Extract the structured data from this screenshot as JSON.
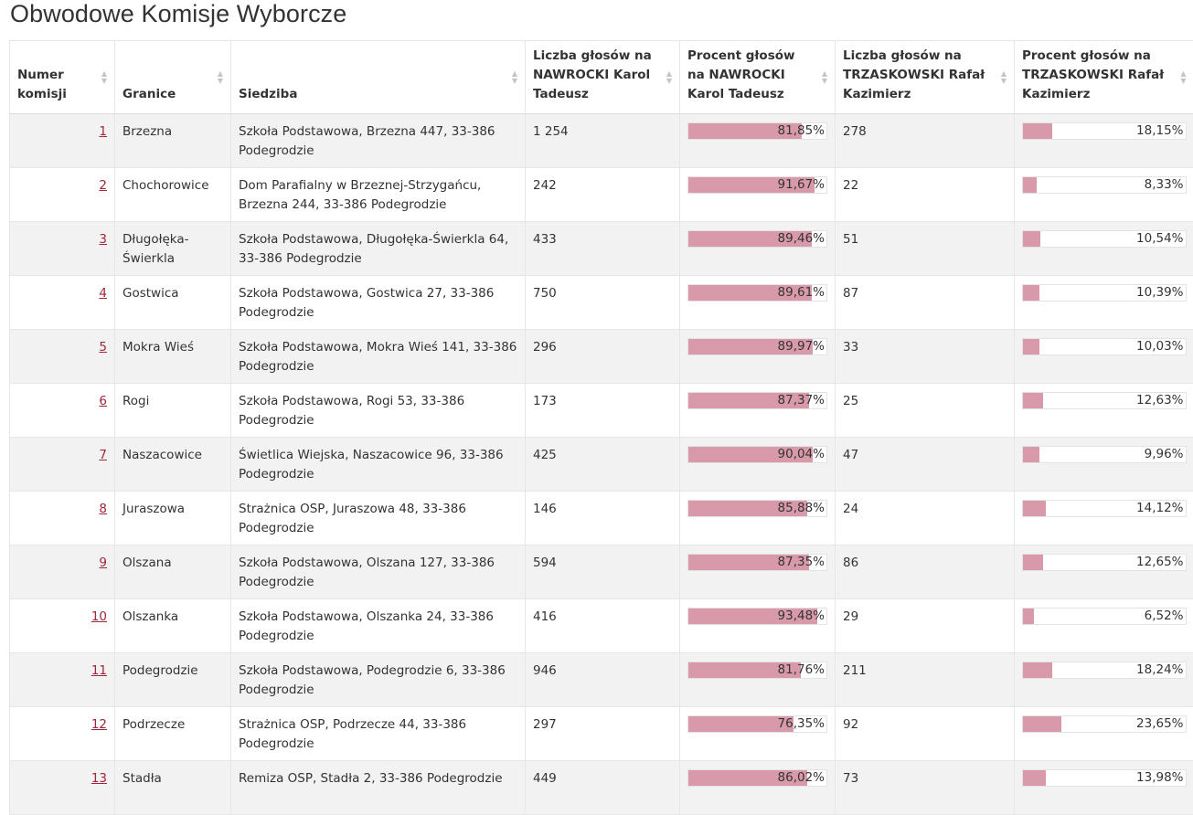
{
  "page_title": "Obwodowe Komisje Wyborcze",
  "colors": {
    "bar_fill": "#d89aaa",
    "link": "#a0263b",
    "stripe": "#f2f2f2"
  },
  "headers": [
    "Numer komisji",
    "Granice",
    "Siedziba",
    "Liczba głosów na NAWROCKI Karol Tadeusz",
    "Procent głosów na NAWROCKI Karol Tadeusz",
    "Liczba głosów na TRZASKOWSKI Rafał Kazimierz",
    "Procent głosów na TRZASKOWSKI Rafał Kazimierz"
  ],
  "sort_icon": "sort-icon",
  "rows": [
    {
      "nr": "1",
      "granice": "Brzezna",
      "siedziba": "Szkoła Podstawowa, Brzezna 447, 33-386 Podegrodzie",
      "n_votes": "1 254",
      "n_pct_label": "81,85%",
      "n_pct": 81.85,
      "t_votes": "278",
      "t_pct_label": "18,15%",
      "t_pct": 18.15
    },
    {
      "nr": "2",
      "granice": "Chochorowice",
      "siedziba": "Dom Parafialny w Brzeznej-Strzygańcu, Brzezna 244, 33-386 Podegrodzie",
      "n_votes": "242",
      "n_pct_label": "91,67%",
      "n_pct": 91.67,
      "t_votes": "22",
      "t_pct_label": "8,33%",
      "t_pct": 8.33
    },
    {
      "nr": "3",
      "granice": "Długołęka-Świerkla",
      "siedziba": "Szkoła Podstawowa, Długołęka-Świerkla 64, 33-386 Podegrodzie",
      "n_votes": "433",
      "n_pct_label": "89,46%",
      "n_pct": 89.46,
      "t_votes": "51",
      "t_pct_label": "10,54%",
      "t_pct": 10.54
    },
    {
      "nr": "4",
      "granice": "Gostwica",
      "siedziba": "Szkoła Podstawowa, Gostwica 27, 33-386 Podegrodzie",
      "n_votes": "750",
      "n_pct_label": "89,61%",
      "n_pct": 89.61,
      "t_votes": "87",
      "t_pct_label": "10,39%",
      "t_pct": 10.39
    },
    {
      "nr": "5",
      "granice": "Mokra Wieś",
      "siedziba": "Szkoła Podstawowa, Mokra Wieś 141, 33-386 Podegrodzie",
      "n_votes": "296",
      "n_pct_label": "89,97%",
      "n_pct": 89.97,
      "t_votes": "33",
      "t_pct_label": "10,03%",
      "t_pct": 10.03
    },
    {
      "nr": "6",
      "granice": "Rogi",
      "siedziba": "Szkoła Podstawowa, Rogi 53, 33-386 Podegrodzie",
      "n_votes": "173",
      "n_pct_label": "87,37%",
      "n_pct": 87.37,
      "t_votes": "25",
      "t_pct_label": "12,63%",
      "t_pct": 12.63
    },
    {
      "nr": "7",
      "granice": "Naszacowice",
      "siedziba": "Świetlica Wiejska, Naszacowice 96, 33-386 Podegrodzie",
      "n_votes": "425",
      "n_pct_label": "90,04%",
      "n_pct": 90.04,
      "t_votes": "47",
      "t_pct_label": "9,96%",
      "t_pct": 9.96
    },
    {
      "nr": "8",
      "granice": "Juraszowa",
      "siedziba": "Strażnica OSP, Juraszowa 48, 33-386 Podegrodzie",
      "n_votes": "146",
      "n_pct_label": "85,88%",
      "n_pct": 85.88,
      "t_votes": "24",
      "t_pct_label": "14,12%",
      "t_pct": 14.12
    },
    {
      "nr": "9",
      "granice": "Olszana",
      "siedziba": "Szkoła Podstawowa, Olszana 127, 33-386 Podegrodzie",
      "n_votes": "594",
      "n_pct_label": "87,35%",
      "n_pct": 87.35,
      "t_votes": "86",
      "t_pct_label": "12,65%",
      "t_pct": 12.65
    },
    {
      "nr": "10",
      "granice": "Olszanka",
      "siedziba": "Szkoła Podstawowa, Olszanka 24, 33-386 Podegrodzie",
      "n_votes": "416",
      "n_pct_label": "93,48%",
      "n_pct": 93.48,
      "t_votes": "29",
      "t_pct_label": "6,52%",
      "t_pct": 6.52
    },
    {
      "nr": "11",
      "granice": "Podegrodzie",
      "siedziba": "Szkoła Podstawowa, Podegrodzie 6, 33-386 Podegrodzie",
      "n_votes": "946",
      "n_pct_label": "81,76%",
      "n_pct": 81.76,
      "t_votes": "211",
      "t_pct_label": "18,24%",
      "t_pct": 18.24
    },
    {
      "nr": "12",
      "granice": "Podrzecze",
      "siedziba": "Strażnica OSP, Podrzecze 44, 33-386 Podegrodzie",
      "n_votes": "297",
      "n_pct_label": "76,35%",
      "n_pct": 76.35,
      "t_votes": "92",
      "t_pct_label": "23,65%",
      "t_pct": 23.65
    },
    {
      "nr": "13",
      "granice": "Stadła",
      "siedziba": "Remiza OSP, Stadła 2, 33-386 Podegrodzie",
      "n_votes": "449",
      "n_pct_label": "86,02%",
      "n_pct": 86.02,
      "t_votes": "73",
      "t_pct_label": "13,98%",
      "t_pct": 13.98
    }
  ]
}
